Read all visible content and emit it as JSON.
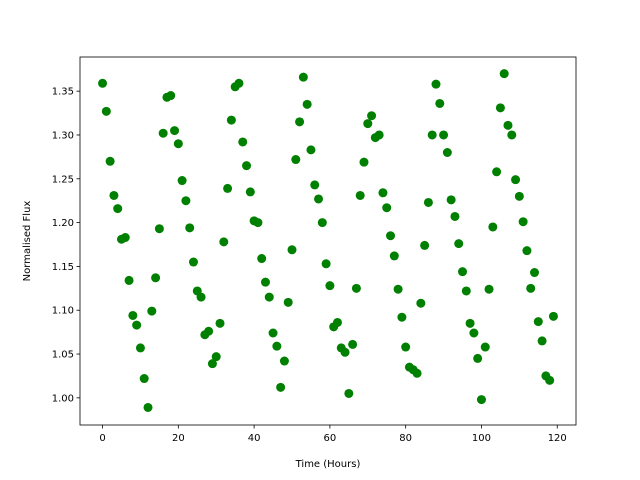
{
  "chart_data": {
    "type": "scatter",
    "xlabel": "Time (Hours)",
    "ylabel": "Normalised Flux",
    "color": "#008000",
    "x": [
      0,
      1,
      2,
      3,
      4,
      5,
      6,
      7,
      8,
      9,
      10,
      11,
      12,
      13,
      14,
      15,
      16,
      17,
      18,
      19,
      20,
      21,
      22,
      23,
      24,
      25,
      26,
      27,
      28,
      29,
      30,
      31,
      32,
      33,
      34,
      35,
      36,
      37,
      38,
      39,
      40,
      41,
      42,
      43,
      44,
      45,
      46,
      47,
      48,
      49,
      50,
      51,
      52,
      53,
      54,
      55,
      56,
      57,
      58,
      59,
      60,
      61,
      62,
      63,
      64,
      65,
      66,
      67,
      68,
      69,
      70,
      71,
      72,
      73,
      74,
      75,
      76,
      77,
      78,
      79,
      80,
      81,
      82,
      83,
      84,
      85,
      86,
      87,
      88,
      89,
      90,
      91,
      92,
      93,
      94,
      95,
      96,
      97,
      98,
      99,
      100,
      101,
      102,
      103,
      104,
      105,
      106,
      107,
      108,
      109,
      110,
      111,
      112,
      113,
      114,
      115,
      116,
      117,
      118,
      119
    ],
    "values": [
      1.359,
      1.327,
      1.27,
      1.231,
      1.216,
      1.181,
      1.183,
      1.134,
      1.094,
      1.083,
      1.057,
      1.022,
      0.989,
      1.099,
      1.137,
      1.193,
      1.302,
      1.343,
      1.345,
      1.305,
      1.29,
      1.248,
      1.225,
      1.194,
      1.155,
      1.122,
      1.115,
      1.072,
      1.076,
      1.039,
      1.047,
      1.085,
      1.178,
      1.239,
      1.317,
      1.355,
      1.359,
      1.292,
      1.265,
      1.235,
      1.202,
      1.2,
      1.159,
      1.132,
      1.115,
      1.074,
      1.059,
      1.012,
      1.042,
      1.109,
      1.169,
      1.272,
      1.315,
      1.366,
      1.335,
      1.283,
      1.243,
      1.227,
      1.2,
      1.153,
      1.128,
      1.081,
      1.086,
      1.057,
      1.052,
      1.005,
      1.061,
      1.125,
      1.231,
      1.269,
      1.313,
      1.322,
      1.297,
      1.3,
      1.234,
      1.217,
      1.185,
      1.162,
      1.124,
      1.092,
      1.058,
      1.035,
      1.032,
      1.028,
      1.108,
      1.174,
      1.223,
      1.3,
      1.358,
      1.336,
      1.3,
      1.28,
      1.226,
      1.207,
      1.176,
      1.144,
      1.122,
      1.085,
      1.074,
      1.045,
      0.998,
      1.058,
      1.124,
      1.195,
      1.258,
      1.331,
      1.37,
      1.311,
      1.3,
      1.249,
      1.23,
      1.201,
      1.168,
      1.125,
      1.143,
      1.087,
      1.065,
      1.025,
      1.02,
      1.093
    ],
    "xlim": [
      -5.95,
      124.95
    ],
    "ylim": [
      0.969,
      1.389
    ],
    "xticks": [
      0,
      20,
      40,
      60,
      80,
      100,
      120
    ],
    "yticks": [
      {
        "value": 1,
        "label": "1.00"
      },
      1.05,
      {
        "value": 1.1,
        "label": "1.10"
      },
      1.15,
      {
        "value": 1.2,
        "label": "1.20"
      },
      1.25,
      {
        "value": 1.3,
        "label": "1.30"
      },
      1.35
    ]
  }
}
